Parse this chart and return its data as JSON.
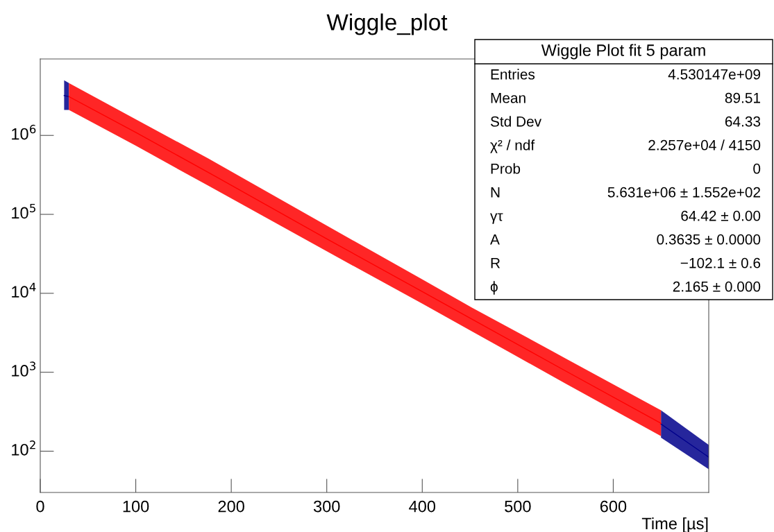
{
  "chart_data": {
    "type": "line",
    "title": "Wiggle_plot",
    "xlabel": "Time [µs]",
    "log": "y",
    "xlim": [
      0,
      700
    ],
    "xticks": [
      0,
      100,
      200,
      300,
      400,
      500,
      600
    ],
    "ylim": [
      30,
      9300000
    ],
    "yticks": [
      {
        "value": 100,
        "label": "10$^{2}$"
      },
      {
        "value": 1000,
        "label": "10$^{3}$"
      },
      {
        "value": 10000,
        "label": "10$^{4}$"
      },
      {
        "value": 100000,
        "label": "10$^{5}$"
      },
      {
        "value": 1000000,
        "label": "10$^{6}$"
      }
    ],
    "grid": false,
    "series": [
      {
        "color": "#00008b",
        "x": [
          25,
          30,
          340,
          650,
          700
        ],
        "values": [
          3200000,
          3100000,
          null,
          221,
          84
        ],
        "lower": [
          2100000,
          2100000,
          null,
          148,
          59
        ],
        "upper": [
          5000000,
          4600000,
          null,
          330,
          120
        ]
      },
      {
        "color": "#ff0000",
        "x": [
          30,
          100,
          176,
          300,
          400,
          452,
          550,
          650
        ],
        "values": [
          3100000,
          1090000,
          340000,
          49000,
          10500,
          4700,
          1040,
          226
        ],
        "lower": [
          2100000,
          740000,
          230000,
          34000,
          7400,
          3300,
          720,
          155
        ],
        "upper": [
          4600000,
          1600000,
          510000,
          72000,
          15000,
          6600,
          1500,
          330
        ]
      }
    ],
    "annotations": [
      "Wiggle Plot fit 5 param",
      "Entries",
      "4.530147e+09",
      "Mean",
      "89.51",
      "Std Dev",
      "64.33",
      "χ² / ndf",
      "2.257e+04 / 4150",
      "Prob",
      "0",
      "N",
      "5.631e+06 ± 1.552e+02",
      "γτ",
      "64.42 ± 0.00",
      "A",
      "0.3635 ± 0.0000",
      "R",
      "−102.1 ± 0.6",
      "ϕ",
      "2.165 ± 0.000"
    ]
  }
}
